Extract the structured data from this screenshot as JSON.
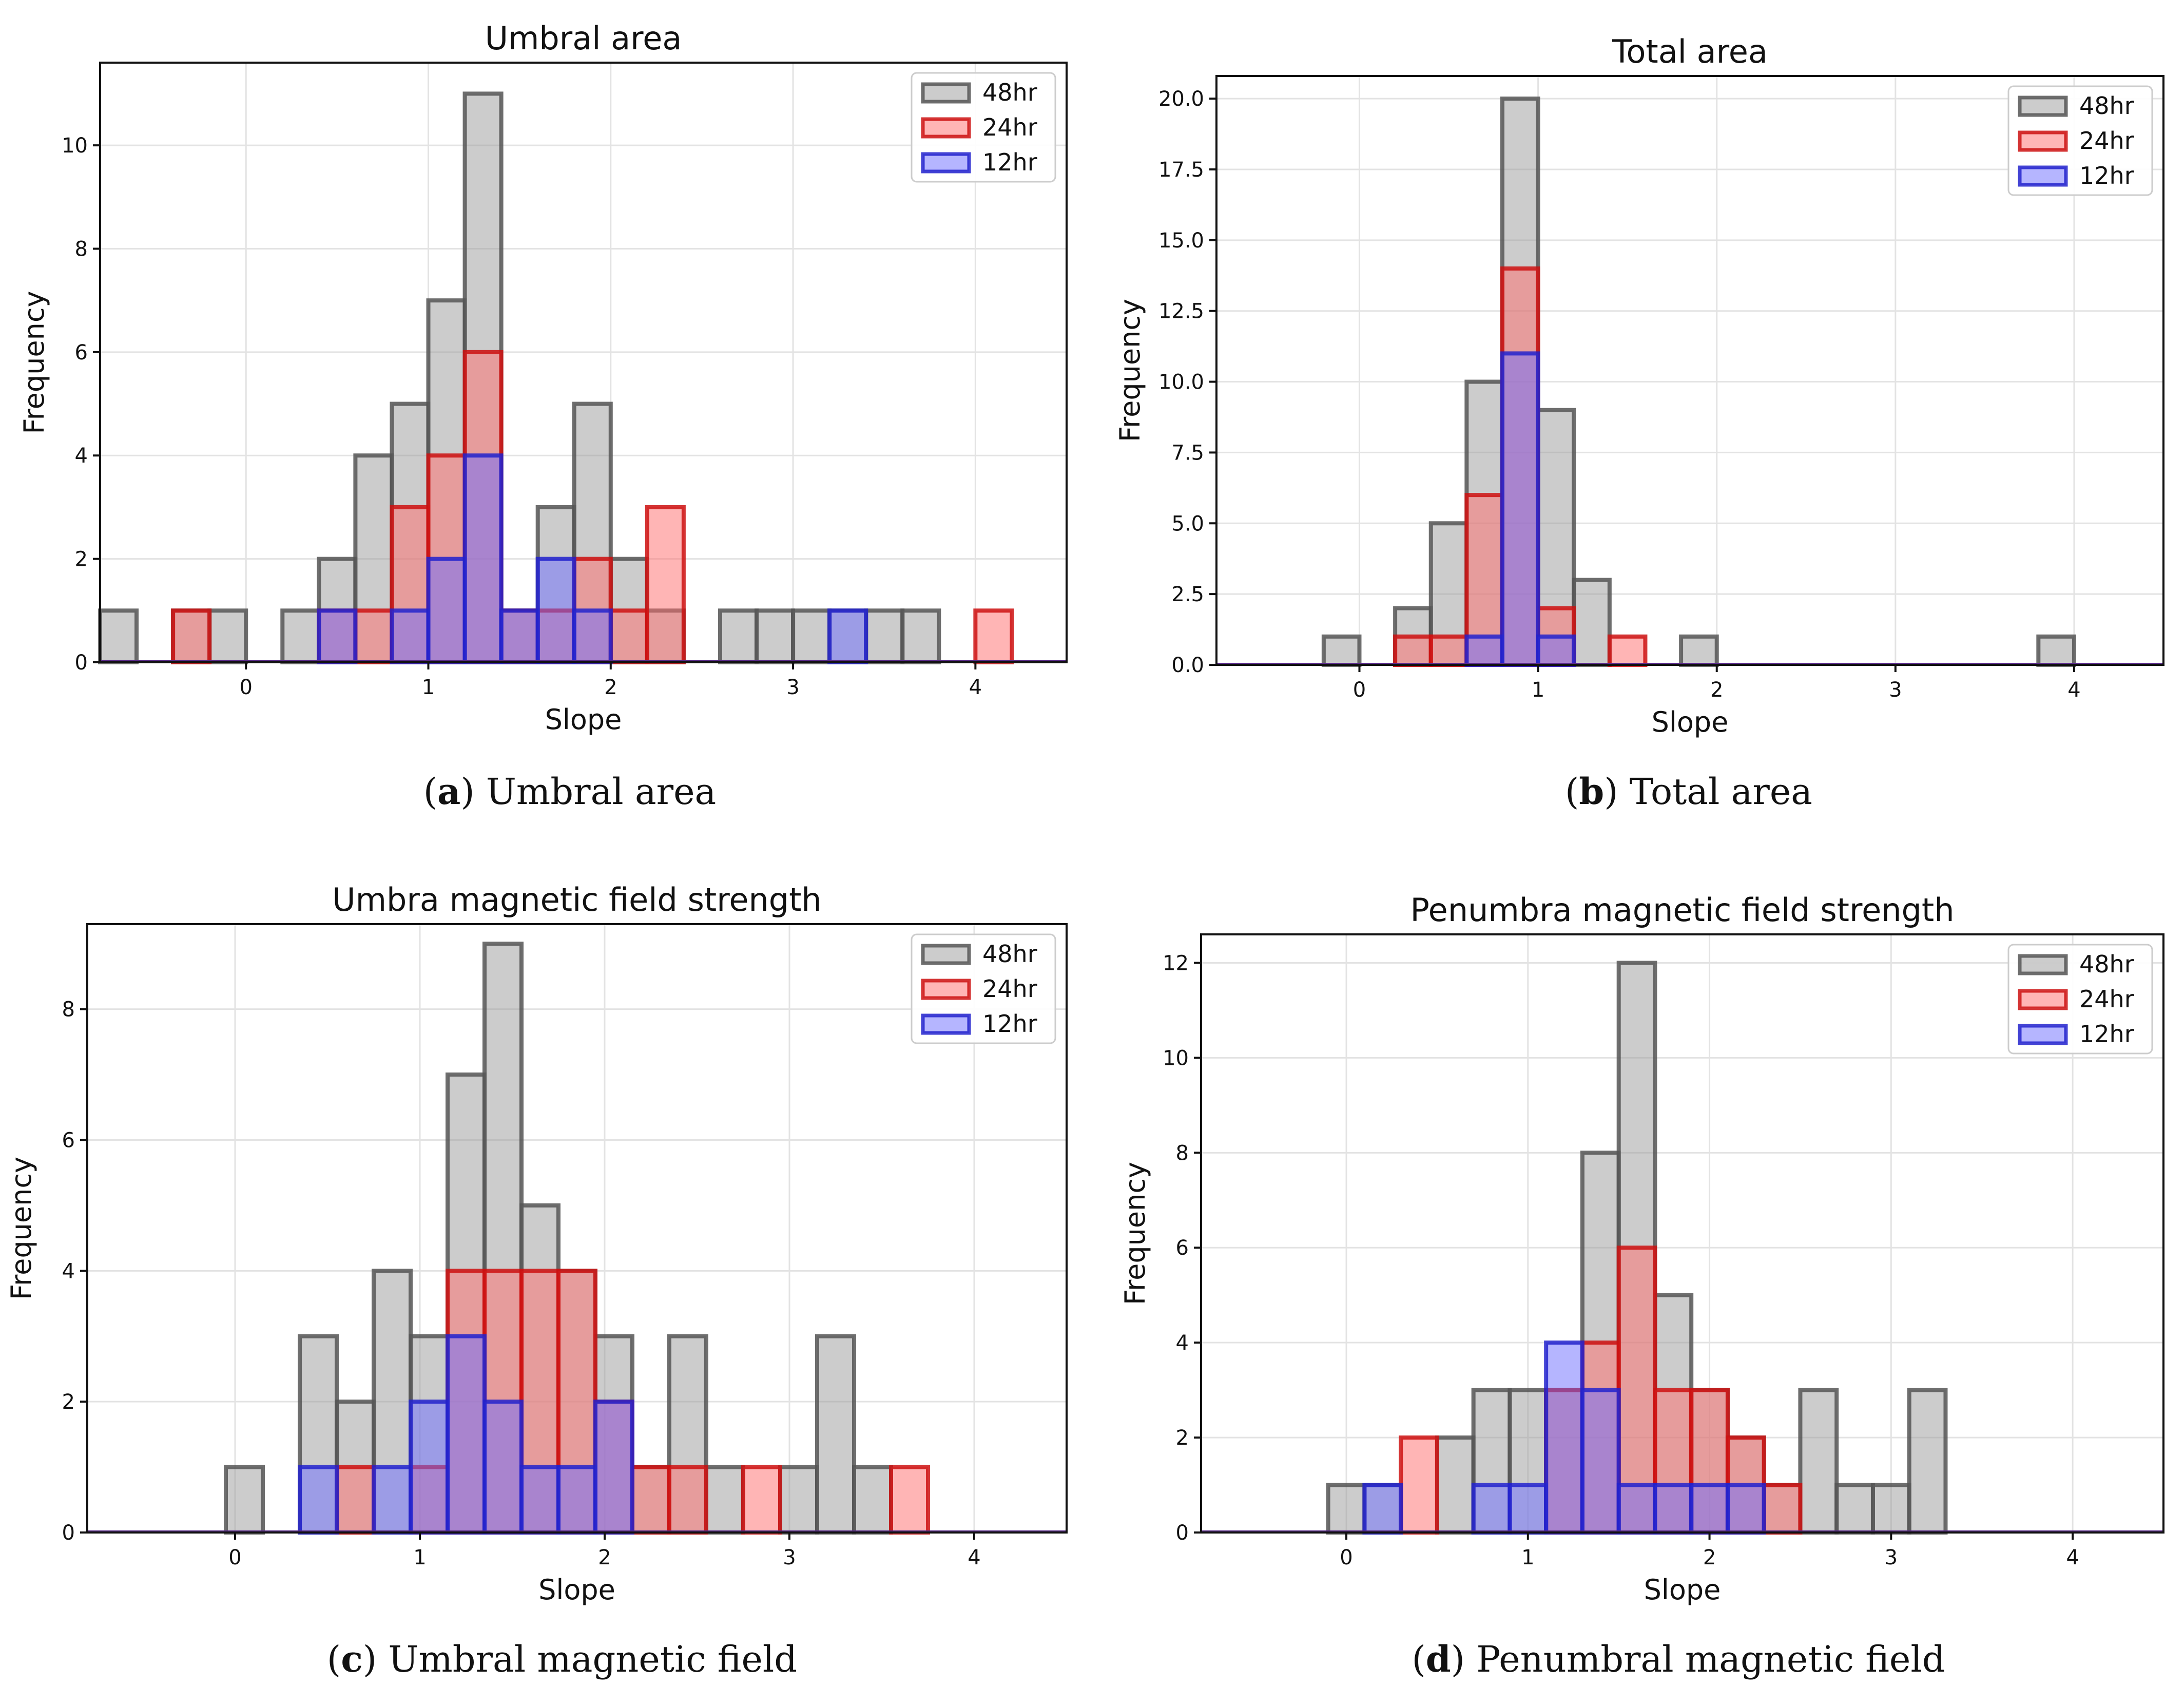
{
  "figure": {
    "captions": [
      {
        "letter": "a",
        "text": " Umbral area"
      },
      {
        "letter": "b",
        "text": " Total area"
      },
      {
        "letter": "c",
        "text": " Umbral magnetic field"
      },
      {
        "letter": "d",
        "text": " Penumbral magnetic field"
      }
    ]
  },
  "chart_data": [
    {
      "type": "bar",
      "title": "Umbral area",
      "xlabel": "Slope",
      "ylabel": "Frequency",
      "xlim": [
        -0.8,
        4.5
      ],
      "ylim": [
        0,
        11.6
      ],
      "xticks": [
        0,
        1,
        2,
        3,
        4
      ],
      "yticks": [
        0,
        2,
        4,
        6,
        8,
        10
      ],
      "ytick_labels": [
        "0",
        "2",
        "4",
        "6",
        "8",
        "10"
      ],
      "bin_width": 0.2,
      "bin_starts": [
        -0.8,
        -0.6,
        -0.4,
        -0.2,
        0.0,
        0.2,
        0.4,
        0.6,
        0.8,
        1.0,
        1.2,
        1.4,
        1.6,
        1.8,
        2.0,
        2.2,
        2.4,
        2.6,
        2.8,
        3.0,
        3.2,
        3.4,
        3.6,
        3.8,
        4.0,
        4.2
      ],
      "legend": "upper-right",
      "series": [
        {
          "name": "48hr",
          "color": "#9a9a9a",
          "edge": "#555555",
          "values": [
            1,
            0,
            1,
            1,
            0,
            1,
            2,
            4,
            5,
            7,
            11,
            1,
            3,
            5,
            2,
            1,
            0,
            1,
            1,
            1,
            1,
            1,
            1,
            0,
            0,
            0
          ]
        },
        {
          "name": "24hr",
          "color": "#ff6b6b",
          "edge": "#cc1111",
          "values": [
            0,
            0,
            1,
            0,
            0,
            0,
            1,
            1,
            3,
            4,
            6,
            1,
            1,
            2,
            1,
            3,
            0,
            0,
            0,
            0,
            0,
            0,
            0,
            0,
            1,
            0
          ]
        },
        {
          "name": "12hr",
          "color": "#6b6bff",
          "edge": "#2222cc",
          "values": [
            0,
            0,
            0,
            0,
            0,
            0,
            1,
            0,
            1,
            2,
            4,
            1,
            2,
            1,
            0,
            0,
            0,
            0,
            0,
            0,
            1,
            0,
            0,
            0,
            0,
            0
          ]
        }
      ]
    },
    {
      "type": "bar",
      "title": "Total area",
      "xlabel": "Slope",
      "ylabel": "Frequency",
      "xlim": [
        -0.8,
        4.5
      ],
      "ylim": [
        0,
        20.8
      ],
      "xticks": [
        0,
        1,
        2,
        3,
        4
      ],
      "yticks": [
        0,
        2.5,
        5,
        7.5,
        10,
        12.5,
        15,
        17.5,
        20
      ],
      "ytick_labels": [
        "0.0",
        "2.5",
        "5.0",
        "7.5",
        "10.0",
        "12.5",
        "15.0",
        "17.5",
        "20.0"
      ],
      "bin_width": 0.2,
      "bin_starts": [
        -0.2,
        0.0,
        0.2,
        0.4,
        0.6,
        0.8,
        1.0,
        1.2,
        1.4,
        1.6,
        1.8,
        2.0,
        3.8
      ],
      "legend": "upper-right",
      "series": [
        {
          "name": "48hr",
          "color": "#9a9a9a",
          "edge": "#555555",
          "values": [
            1,
            0,
            2,
            5,
            10,
            20,
            9,
            3,
            0,
            0,
            1,
            0,
            1
          ]
        },
        {
          "name": "24hr",
          "color": "#ff6b6b",
          "edge": "#cc1111",
          "values": [
            0,
            0,
            1,
            1,
            6,
            14,
            2,
            0,
            1,
            0,
            0,
            0,
            0
          ]
        },
        {
          "name": "12hr",
          "color": "#6b6bff",
          "edge": "#2222cc",
          "values": [
            0,
            0,
            0,
            0,
            1,
            11,
            1,
            0,
            0,
            0,
            0,
            0,
            0
          ]
        }
      ]
    },
    {
      "type": "bar",
      "title": "Umbra magnetic field strength",
      "xlabel": "Slope",
      "ylabel": "Frequency",
      "xlim": [
        -0.8,
        4.5
      ],
      "ylim": [
        0,
        9.3
      ],
      "xticks": [
        0,
        1,
        2,
        3,
        4
      ],
      "yticks": [
        0,
        2,
        4,
        6,
        8
      ],
      "ytick_labels": [
        "0",
        "2",
        "4",
        "6",
        "8"
      ],
      "bin_width": 0.2,
      "bin_starts": [
        -0.05,
        0.15,
        0.35,
        0.55,
        0.75,
        0.95,
        1.15,
        1.35,
        1.55,
        1.75,
        1.95,
        2.15,
        2.35,
        2.55,
        2.75,
        2.95,
        3.15,
        3.35,
        3.55
      ],
      "legend": "upper-right",
      "series": [
        {
          "name": "48hr",
          "color": "#9a9a9a",
          "edge": "#555555",
          "values": [
            1,
            0,
            3,
            2,
            4,
            3,
            7,
            9,
            5,
            4,
            3,
            1,
            3,
            1,
            0,
            1,
            3,
            1,
            0
          ]
        },
        {
          "name": "24hr",
          "color": "#ff6b6b",
          "edge": "#cc1111",
          "values": [
            0,
            0,
            0,
            1,
            0,
            1,
            4,
            4,
            4,
            4,
            2,
            1,
            1,
            0,
            1,
            0,
            0,
            0,
            1
          ]
        },
        {
          "name": "12hr",
          "color": "#6b6bff",
          "edge": "#2222cc",
          "values": [
            0,
            0,
            1,
            0,
            1,
            2,
            3,
            2,
            1,
            1,
            2,
            0,
            0,
            0,
            0,
            0,
            0,
            0,
            0
          ]
        }
      ]
    },
    {
      "type": "bar",
      "title": "Penumbra magnetic field strength",
      "xlabel": "Slope",
      "ylabel": "Frequency",
      "xlim": [
        -0.8,
        4.5
      ],
      "ylim": [
        0,
        12.6
      ],
      "xticks": [
        0,
        1,
        2,
        3,
        4
      ],
      "yticks": [
        0,
        2,
        4,
        6,
        8,
        10,
        12
      ],
      "ytick_labels": [
        "0",
        "2",
        "4",
        "6",
        "8",
        "10",
        "12"
      ],
      "bin_width": 0.2,
      "bin_starts": [
        -0.1,
        0.1,
        0.3,
        0.5,
        0.7,
        0.9,
        1.1,
        1.3,
        1.5,
        1.7,
        1.9,
        2.1,
        2.3,
        2.5,
        2.7,
        2.9,
        3.1
      ],
      "legend": "upper-right",
      "series": [
        {
          "name": "48hr",
          "color": "#9a9a9a",
          "edge": "#555555",
          "values": [
            1,
            1,
            0,
            2,
            3,
            3,
            3,
            8,
            12,
            5,
            3,
            2,
            1,
            3,
            1,
            1,
            3
          ]
        },
        {
          "name": "24hr",
          "color": "#ff6b6b",
          "edge": "#cc1111",
          "values": [
            0,
            0,
            2,
            0,
            0,
            0,
            3,
            4,
            6,
            3,
            3,
            2,
            1,
            0,
            0,
            0,
            0
          ]
        },
        {
          "name": "12hr",
          "color": "#6b6bff",
          "edge": "#2222cc",
          "values": [
            0,
            1,
            0,
            0,
            1,
            1,
            4,
            3,
            1,
            1,
            1,
            1,
            0,
            0,
            0,
            0,
            0
          ]
        }
      ]
    }
  ]
}
